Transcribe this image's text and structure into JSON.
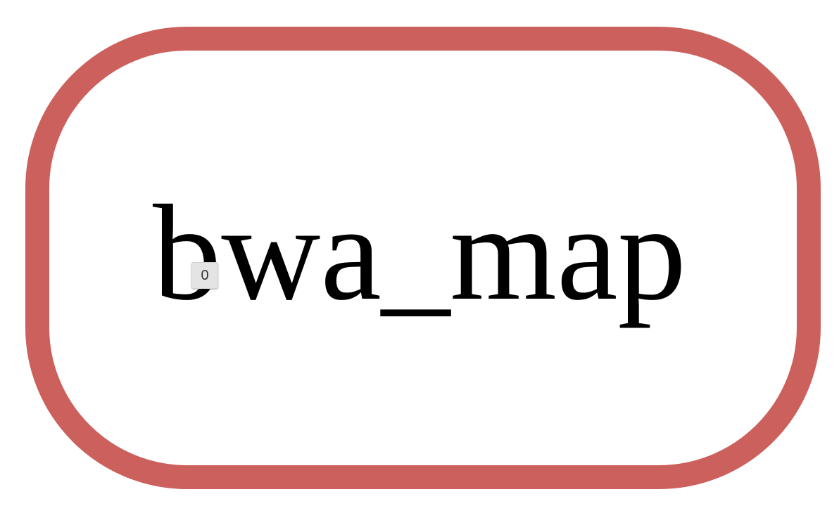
{
  "node": {
    "label": "bwa_map",
    "border_color": "#cc605c"
  },
  "badge": {
    "value": "0"
  }
}
